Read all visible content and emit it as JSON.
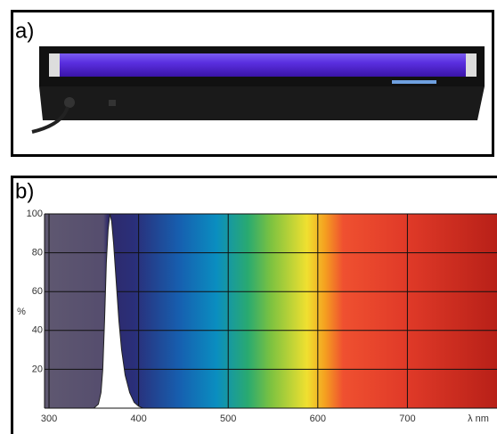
{
  "panel_a": {
    "label": "a)"
  },
  "panel_b": {
    "label": "b)"
  },
  "chart_data": {
    "type": "area",
    "xlabel": "λ nm",
    "ylabel": "%",
    "xlim": [
      295,
      800
    ],
    "ylim": [
      0,
      100
    ],
    "xticks": [
      300,
      400,
      500,
      600,
      700
    ],
    "yticks": [
      20,
      40,
      60,
      80,
      100
    ],
    "grid": true,
    "series": [
      {
        "color": "#ffffff",
        "x": [
          350,
          355,
          358,
          360,
          362,
          364,
          366,
          368,
          370,
          372,
          375,
          378,
          381,
          385,
          390,
          395,
          400,
          405
        ],
        "values": [
          0,
          2,
          8,
          20,
          45,
          75,
          92,
          100,
          96,
          85,
          65,
          45,
          30,
          17,
          8,
          3,
          1,
          0
        ]
      }
    ]
  }
}
